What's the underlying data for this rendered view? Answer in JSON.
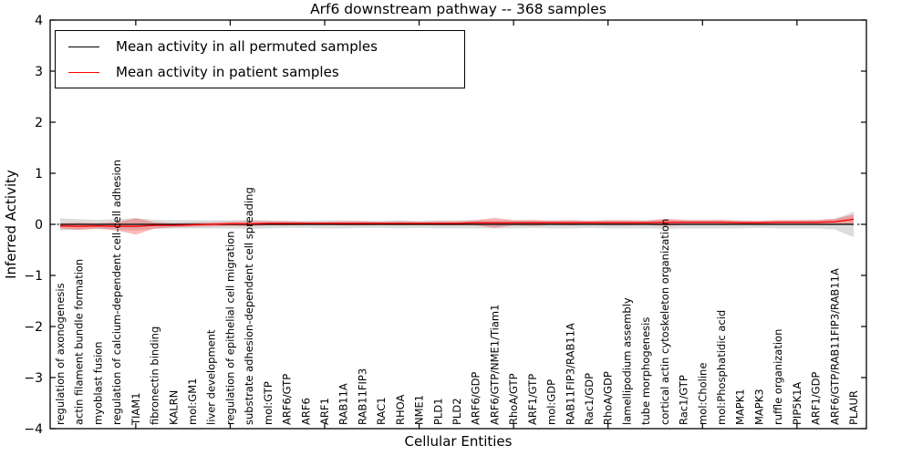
{
  "chart_data": {
    "type": "line",
    "title": "Arf6 downstream pathway -- 368 samples",
    "xlabel": "Cellular Entities",
    "ylabel": "Inferred Activity",
    "ylim": [
      -4,
      4
    ],
    "ytick_labels": [
      "4",
      "3",
      "2",
      "1",
      "0",
      "−1",
      "−2",
      "−3",
      "−4"
    ],
    "x_major_tick_every": 5,
    "grid": false,
    "legend_position": "upper left",
    "zero_line": {
      "style": "dotted",
      "color": "#000000",
      "y": 0
    },
    "categories": [
      "regulation of axonogenesis",
      "actin filament bundle formation",
      "myoblast fusion",
      "regulation of calcium-dependent cell-cell adhesion",
      "TIAM1",
      "fibronectin binding",
      "KALRN",
      "mol:GM1",
      "liver development",
      "regulation of epithelial cell migration",
      "substrate adhesion-dependent cell spreading",
      "mol:GTP",
      "ARF6/GTP",
      "ARF6",
      "ARF1",
      "RAB11A",
      "RAB11FIP3",
      "RAC1",
      "RHOA",
      "NME1",
      "PLD1",
      "PLD2",
      "ARF6/GDP",
      "ARF6/GTP/NME1/Tiam1",
      "RhoA/GTP",
      "ARF1/GTP",
      "mol:GDP",
      "RAB11FIP3/RAB11A",
      "Rac1/GDP",
      "RhoA/GDP",
      "lamellipodium assembly",
      "tube morphogenesis",
      "cortical actin cytoskeleton organization",
      "Rac1/GTP",
      "mol:Choline",
      "mol:Phosphatidic acid",
      "MAPK1",
      "MAPK3",
      "ruffle organization",
      "PIP5K1A",
      "ARF1/GDP",
      "ARF6/GTP/RAB11FIP3/RAB11A",
      "PLAUR"
    ],
    "series": [
      {
        "name": "Mean activity in all permuted samples",
        "color": "#000000",
        "band_color": "#808080",
        "band_opacity": 0.28,
        "values": [
          0,
          0,
          0,
          0,
          0,
          0,
          0,
          0,
          0,
          0,
          0,
          0,
          0,
          0,
          0,
          0,
          0,
          0,
          0,
          0,
          0,
          0,
          0,
          0,
          0,
          0,
          0,
          0,
          0,
          0,
          0,
          0,
          0,
          0,
          0,
          0,
          0,
          0,
          0,
          0,
          0,
          0,
          0
        ],
        "band_halfwidth": [
          0.12,
          0.1,
          0.09,
          0.1,
          0.12,
          0.09,
          0.08,
          0.08,
          0.08,
          0.08,
          0.09,
          0.08,
          0.07,
          0.07,
          0.08,
          0.08,
          0.07,
          0.07,
          0.08,
          0.07,
          0.08,
          0.08,
          0.08,
          0.08,
          0.08,
          0.07,
          0.08,
          0.08,
          0.07,
          0.08,
          0.08,
          0.08,
          0.09,
          0.08,
          0.08,
          0.08,
          0.08,
          0.07,
          0.08,
          0.08,
          0.08,
          0.1,
          0.25
        ]
      },
      {
        "name": "Mean activity in patient samples",
        "color": "#ff0000",
        "band_color": "#ff0000",
        "band_opacity": 0.27,
        "values": [
          -0.03,
          -0.04,
          -0.03,
          -0.04,
          -0.04,
          -0.02,
          -0.02,
          -0.01,
          0.0,
          0.01,
          0.01,
          0.02,
          0.02,
          0.02,
          0.02,
          0.02,
          0.02,
          0.02,
          0.02,
          0.02,
          0.02,
          0.02,
          0.03,
          0.03,
          0.03,
          0.03,
          0.03,
          0.03,
          0.03,
          0.03,
          0.03,
          0.03,
          0.04,
          0.04,
          0.04,
          0.04,
          0.03,
          0.03,
          0.04,
          0.04,
          0.04,
          0.05,
          0.1
        ],
        "band_halfwidth": [
          0.05,
          0.07,
          0.05,
          0.08,
          0.16,
          0.06,
          0.04,
          0.04,
          0.04,
          0.04,
          0.05,
          0.04,
          0.04,
          0.03,
          0.03,
          0.04,
          0.04,
          0.03,
          0.04,
          0.03,
          0.04,
          0.04,
          0.05,
          0.1,
          0.05,
          0.06,
          0.04,
          0.05,
          0.04,
          0.05,
          0.05,
          0.04,
          0.07,
          0.05,
          0.04,
          0.05,
          0.04,
          0.04,
          0.04,
          0.04,
          0.05,
          0.06,
          0.09
        ]
      }
    ]
  },
  "legend": {
    "entries": [
      {
        "label": "Mean activity in all permuted samples",
        "color": "#000000"
      },
      {
        "label": "Mean activity in patient samples",
        "color": "#ff0000"
      }
    ]
  }
}
